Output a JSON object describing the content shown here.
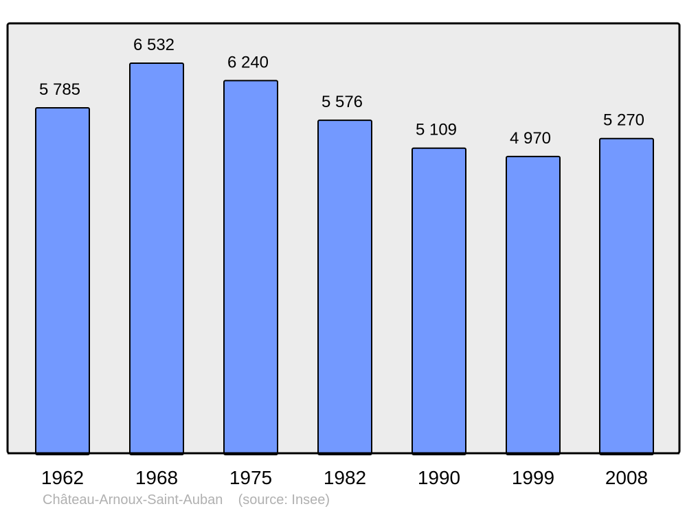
{
  "chart_data": {
    "type": "bar",
    "categories": [
      "1962",
      "1968",
      "1975",
      "1982",
      "1990",
      "1999",
      "2008"
    ],
    "values": [
      5785,
      6532,
      6240,
      5576,
      5109,
      4970,
      5270
    ],
    "value_labels": [
      "5 785",
      "6 532",
      "6 240",
      "5 576",
      "5 109",
      "4 970",
      "5 270"
    ],
    "title": "",
    "xlabel": "",
    "ylabel": "",
    "ylim": [
      0,
      6532
    ],
    "grid": false,
    "legend": "none",
    "colors": {
      "bar": "#7399ff",
      "plot_background": "#ececec",
      "outline": "#000000"
    }
  },
  "caption": {
    "place": "Château-Arnoux-Saint-Auban",
    "source": "(source: Insee)"
  }
}
